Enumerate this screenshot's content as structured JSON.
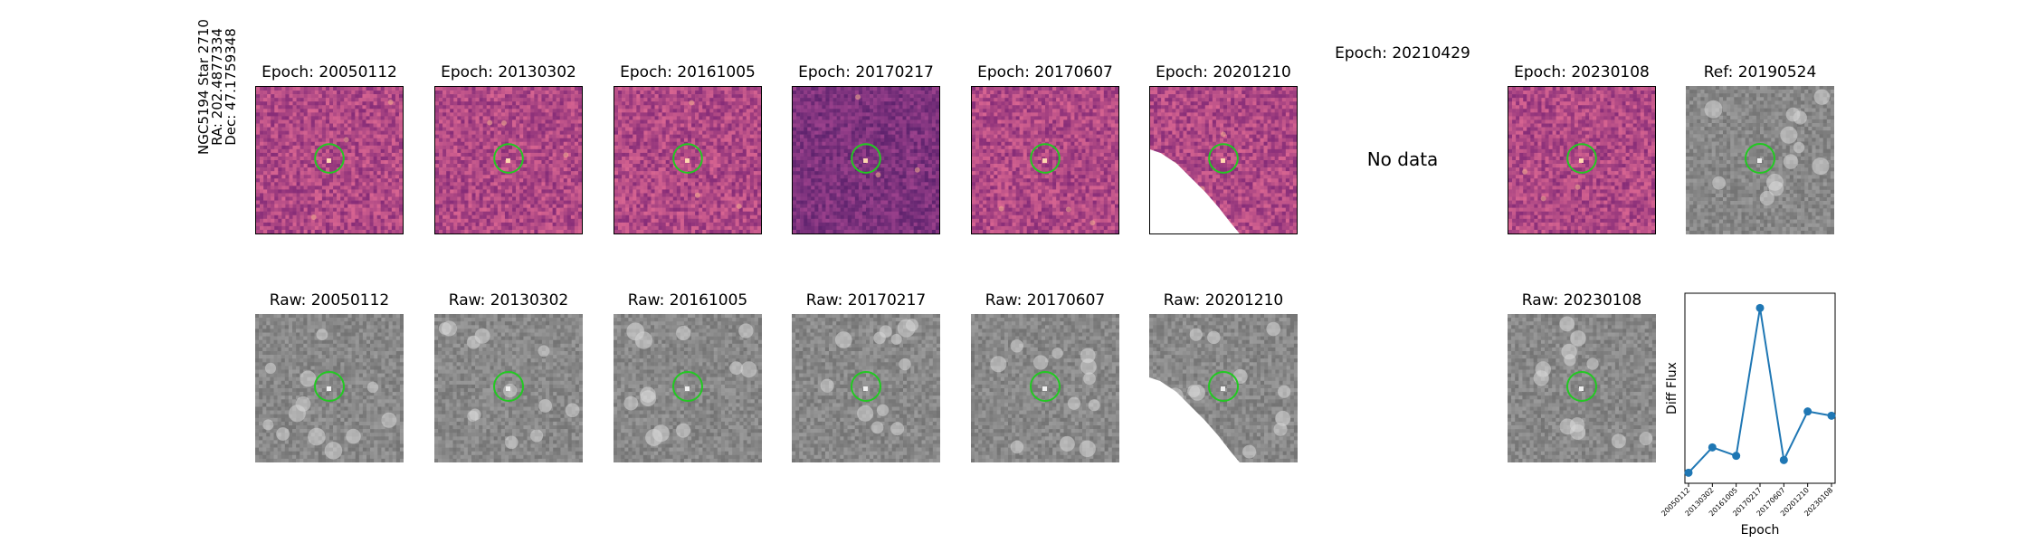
{
  "star_label": {
    "name": "NGC5194 Star 2710",
    "ra": "RA: 202.4877334",
    "dec": "Dec: 47.1759348"
  },
  "top_row": [
    {
      "title": "Epoch: 20050112",
      "kind": "diff",
      "has_data": true
    },
    {
      "title": "Epoch: 20130302",
      "kind": "diff",
      "has_data": true
    },
    {
      "title": "Epoch: 20161005",
      "kind": "diff",
      "has_data": true
    },
    {
      "title": "Epoch: 20170217",
      "kind": "diff",
      "has_data": true
    },
    {
      "title": "Epoch: 20170607",
      "kind": "diff",
      "has_data": true
    },
    {
      "title": "Epoch: 20201210",
      "kind": "diff",
      "has_data": true
    },
    {
      "title": "Epoch: 20210429",
      "kind": "diff",
      "has_data": false,
      "message": "No data"
    },
    {
      "title": "Epoch: 20230108",
      "kind": "diff",
      "has_data": true
    },
    {
      "title": "Ref: 20190524",
      "kind": "raw",
      "has_data": true
    }
  ],
  "bottom_row": [
    {
      "title": "Raw: 20050112"
    },
    {
      "title": "Raw: 20130302"
    },
    {
      "title": "Raw: 20161005"
    },
    {
      "title": "Raw: 20170217"
    },
    {
      "title": "Raw: 20170607"
    },
    {
      "title": "Raw: 20201210"
    },
    {
      "title": "Raw: 20230108"
    }
  ],
  "colors": {
    "aperture": "#22c922",
    "line": "#1f77b4",
    "diff_base": "#b0487f",
    "raw_base": "#8a8a8a"
  },
  "chart_data": {
    "type": "line",
    "xlabel": "Epoch",
    "ylabel": "Diff Flux",
    "categories": [
      "20050112",
      "20130302",
      "20161005",
      "20170217",
      "20170607",
      "20201210",
      "20230108"
    ],
    "values": [
      0.05,
      0.17,
      0.13,
      0.83,
      0.11,
      0.34,
      0.32
    ],
    "ylim": [
      0,
      0.9
    ],
    "grid": false,
    "y_ticks_shown": false
  }
}
